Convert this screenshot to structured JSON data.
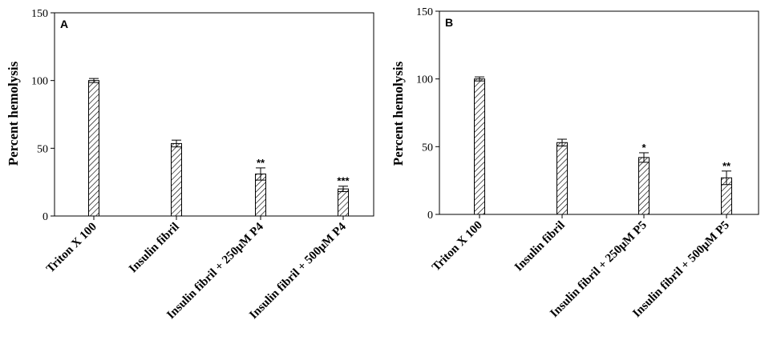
{
  "chart_data": [
    {
      "type": "bar",
      "panel_label": "A",
      "ylabel": "Percent hemolysis",
      "ylim": [
        0,
        150
      ],
      "yticks": [
        0,
        50,
        100,
        150
      ],
      "categories": [
        "Triton X 100",
        "Insulin fibril",
        "Insulin fibril + 250μM P4",
        "Insulin fibril + 500μM P4"
      ],
      "values": [
        100,
        53.5,
        31,
        20
      ],
      "errors": [
        1.5,
        2.5,
        4.5,
        2
      ],
      "significance": [
        "",
        "",
        "**",
        "***"
      ],
      "bar_pattern": "diagonal-hatch",
      "grid": false
    },
    {
      "type": "bar",
      "panel_label": "B",
      "ylabel": "Percent hemolysis",
      "ylim": [
        0,
        150
      ],
      "yticks": [
        0,
        50,
        100,
        150
      ],
      "categories": [
        "Triton X 100",
        "Insulin fibril",
        "Insulin fibril + 250μM P5",
        "Insulin fibril + 500μM P5"
      ],
      "values": [
        100,
        53,
        42,
        27
      ],
      "errors": [
        1.5,
        2.5,
        3.5,
        5
      ],
      "significance": [
        "",
        "",
        "*",
        "**"
      ],
      "bar_pattern": "diagonal-hatch",
      "grid": false
    }
  ]
}
